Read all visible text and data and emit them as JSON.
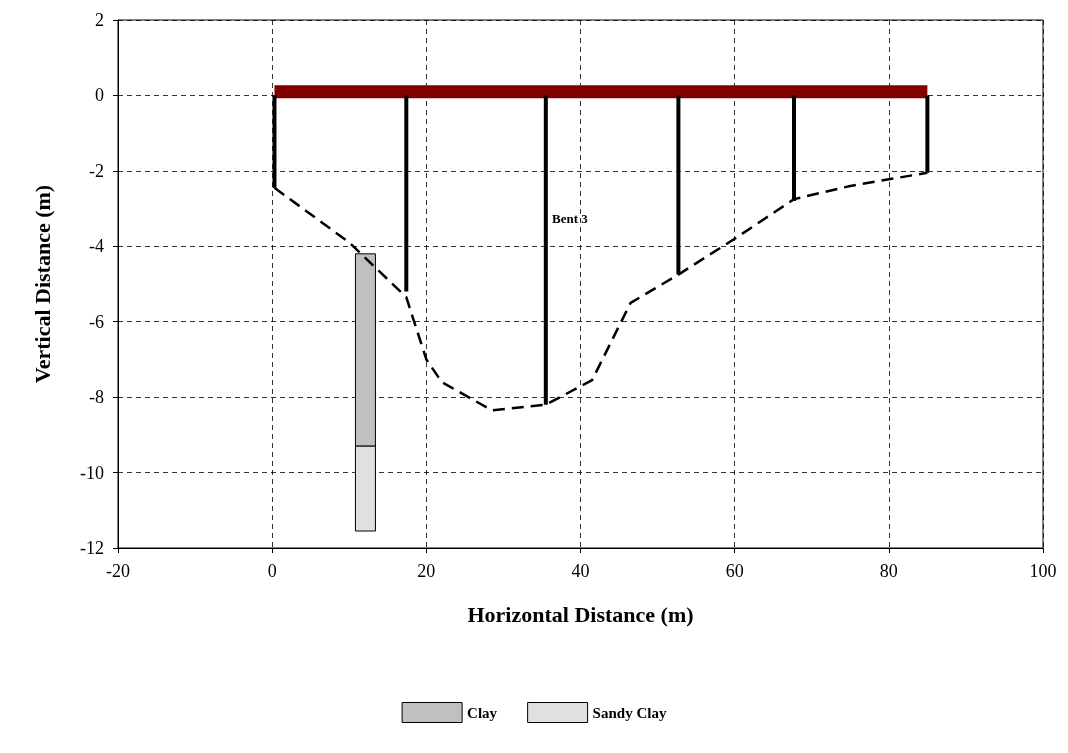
{
  "chart_data": {
    "type": "line",
    "xlabel": "Horizontal Distance (m)",
    "ylabel": "Vertical Distance (m)",
    "xlim": [
      -20,
      100
    ],
    "xticks": [
      -20,
      0,
      20,
      40,
      60,
      80,
      100
    ],
    "ylim": [
      -12,
      2
    ],
    "yticks": [
      -12,
      -10,
      -8,
      -6,
      -4,
      -2,
      0,
      2
    ],
    "grid": true,
    "legend": "bottom",
    "annotations": [
      "Bent 3"
    ],
    "series": [
      {
        "color": "#800000",
        "line_style": "solid",
        "x": [
          0.3,
          85
        ],
        "values": [
          0.1,
          0.1
        ]
      },
      {
        "color": "#000000",
        "line_style": "dashed",
        "x": [
          0.3,
          10,
          17.4,
          20,
          22,
          28.5,
          35.5,
          41.5,
          46.5,
          52.7,
          60,
          67.7,
          75,
          85
        ],
        "values": [
          -2.45,
          -3.9,
          -5.35,
          -7,
          -7.6,
          -8.35,
          -8.2,
          -7.55,
          -5.5,
          -4.75,
          -3.8,
          -2.75,
          -2.4,
          -2.05
        ]
      },
      {
        "color": "#000000",
        "line_style": "solid",
        "x": [
          0.3,
          0.3
        ],
        "values": [
          0,
          -2.45
        ]
      },
      {
        "color": "#000000",
        "line_style": "solid",
        "x": [
          17.4,
          17.4
        ],
        "values": [
          0,
          -5.2
        ]
      },
      {
        "color": "#000000",
        "line_style": "solid",
        "x": [
          35.5,
          35.5
        ],
        "values": [
          0,
          -8.2
        ]
      },
      {
        "color": "#000000",
        "line_style": "solid",
        "x": [
          52.7,
          52.7
        ],
        "values": [
          0,
          -4.75
        ]
      },
      {
        "color": "#000000",
        "line_style": "solid",
        "x": [
          67.7,
          67.7
        ],
        "values": [
          0,
          -2.8
        ]
      },
      {
        "color": "#000000",
        "line_style": "solid",
        "x": [
          85,
          85
        ],
        "values": [
          0,
          -2.05
        ]
      },
      {
        "type": "bar",
        "name": "Clay",
        "color": "#c0c0c0",
        "x": [
          12.1
        ],
        "values": [
          -5.1
        ],
        "base": [
          -4.2
        ]
      },
      {
        "type": "bar",
        "name": "Sandy Clay",
        "color": "#e0e0e0",
        "x": [
          12.1
        ],
        "values": [
          -2.25
        ],
        "base": [
          -9.3
        ]
      }
    ]
  }
}
